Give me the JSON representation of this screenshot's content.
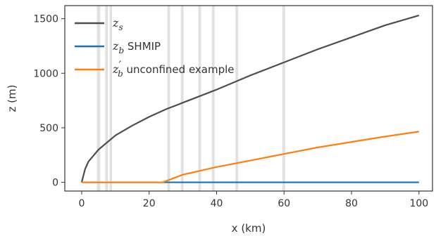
{
  "chart_data": {
    "type": "line",
    "xlabel": "x (km)",
    "ylabel": "z (m)",
    "xlim": [
      -5,
      104
    ],
    "ylim": [
      -80,
      1620
    ],
    "xticks": [
      0,
      20,
      40,
      60,
      80,
      100
    ],
    "yticks": [
      0,
      500,
      1000,
      1500
    ],
    "legend_position": "top-left",
    "grid": false,
    "vertical_bands": [
      [
        4.5,
        5.5
      ],
      [
        7.0,
        7.8
      ],
      [
        8.3,
        9.0
      ],
      [
        25.4,
        26.2
      ],
      [
        29.4,
        30.2
      ],
      [
        34.6,
        35.4
      ],
      [
        38.6,
        39.4
      ],
      [
        45.6,
        46.4
      ],
      [
        59.5,
        60.3
      ]
    ],
    "series": [
      {
        "name": "z_s",
        "legend_main": "z",
        "legend_sub": "s",
        "legend_suffix": "",
        "color": "#4d4d4d",
        "x": [
          0,
          1,
          2,
          5,
          10,
          15,
          20,
          25,
          30,
          40,
          50,
          60,
          70,
          80,
          90,
          100
        ],
        "y": [
          0,
          120,
          190,
          300,
          430,
          520,
          600,
          670,
          730,
          850,
          980,
          1100,
          1220,
          1330,
          1440,
          1530
        ]
      },
      {
        "name": "z_b SHMIP",
        "legend_main": "z",
        "legend_sub": "b",
        "legend_suffix": " SHMIP",
        "color": "#1f6fb4",
        "x": [
          0,
          100
        ],
        "y": [
          0,
          0
        ]
      },
      {
        "name": "z'_b unconfined example",
        "legend_main": "z",
        "legend_sub": "b",
        "legend_prime": "′",
        "legend_suffix": " unconfined example",
        "color": "#ff7f0e",
        "x": [
          0,
          24,
          30,
          40,
          50,
          60,
          70,
          80,
          90,
          100
        ],
        "y": [
          0,
          0,
          70,
          140,
          200,
          260,
          320,
          370,
          420,
          465
        ]
      }
    ]
  }
}
